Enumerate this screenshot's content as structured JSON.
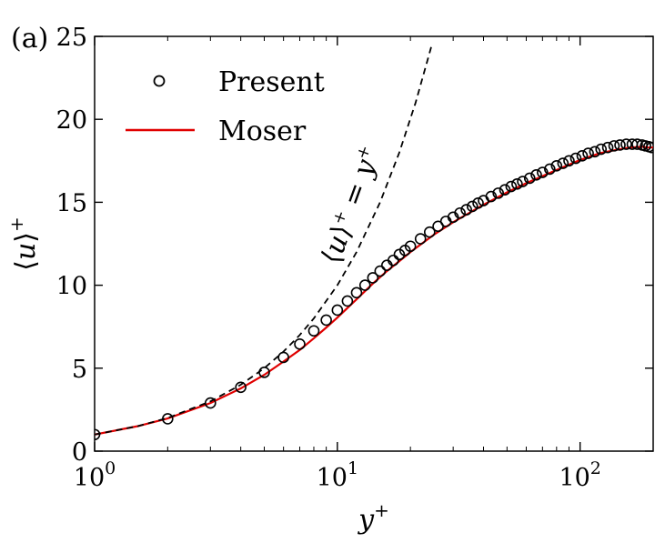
{
  "panel_label": "(a)",
  "chart_data": {
    "type": "line",
    "title": "",
    "xlabel": "y+",
    "ylabel": "⟨u⟩+",
    "xscale": "log",
    "xlim": [
      1,
      200
    ],
    "ylim": [
      0,
      25
    ],
    "ytick_labels": [
      "0",
      "5",
      "10",
      "15",
      "20",
      "25"
    ],
    "ytick_values": [
      0,
      5,
      10,
      15,
      20,
      25
    ],
    "xtick_labels": [
      {
        "base": "10",
        "exp": "0"
      },
      {
        "base": "10",
        "exp": "1"
      },
      {
        "base": "10",
        "exp": "2"
      }
    ],
    "xtick_values": [
      1,
      10,
      100
    ],
    "legend": {
      "placement": "top-left",
      "entries": [
        {
          "label": "Present",
          "marker": "circle-open",
          "color": "#000000"
        },
        {
          "label": "Moser",
          "marker": "line",
          "color": "#e00000"
        }
      ]
    },
    "annotation": {
      "text": "⟨u⟩+ = y+",
      "rotation_deg": -70
    },
    "series": [
      {
        "name": "Present",
        "style": "open-circles",
        "color": "#000000",
        "x": [
          1,
          2,
          3,
          4,
          5,
          6,
          7,
          8,
          9,
          10,
          11,
          12,
          13,
          14,
          15,
          16,
          17,
          18,
          19,
          20,
          22,
          24,
          26,
          28,
          30,
          32,
          34,
          36,
          38,
          40,
          43,
          46,
          49,
          52,
          55,
          58,
          62,
          66,
          70,
          75,
          80,
          85,
          90,
          96,
          102,
          108,
          115,
          122,
          130,
          138,
          146,
          155,
          164,
          172,
          180,
          186,
          192,
          197
        ],
        "y": [
          1.0,
          1.95,
          2.9,
          3.85,
          4.75,
          5.65,
          6.45,
          7.25,
          7.9,
          8.5,
          9.05,
          9.55,
          10.0,
          10.45,
          10.85,
          11.2,
          11.5,
          11.85,
          12.1,
          12.35,
          12.8,
          13.2,
          13.55,
          13.85,
          14.1,
          14.35,
          14.55,
          14.75,
          14.95,
          15.1,
          15.35,
          15.55,
          15.75,
          15.95,
          16.1,
          16.25,
          16.45,
          16.65,
          16.8,
          17.0,
          17.2,
          17.35,
          17.5,
          17.65,
          17.8,
          17.95,
          18.05,
          18.2,
          18.3,
          18.4,
          18.45,
          18.5,
          18.5,
          18.5,
          18.45,
          18.4,
          18.35,
          18.3
        ]
      },
      {
        "name": "Moser",
        "style": "solid-line",
        "color": "#e00000",
        "x": [
          1,
          1.5,
          2,
          3,
          4,
          5,
          6,
          7,
          8,
          9,
          10,
          12,
          14,
          16,
          18,
          20,
          25,
          30,
          40,
          50,
          60,
          80,
          100,
          120,
          140,
          160,
          180,
          190,
          200
        ],
        "y": [
          1.0,
          1.5,
          1.97,
          2.9,
          3.78,
          4.6,
          5.4,
          6.1,
          6.8,
          7.45,
          8.05,
          9.15,
          10.1,
          10.85,
          11.45,
          12.0,
          13.05,
          13.8,
          14.85,
          15.6,
          16.15,
          16.95,
          17.55,
          17.95,
          18.15,
          18.3,
          18.35,
          18.3,
          18.3
        ]
      },
      {
        "name": "⟨u⟩+ = y+",
        "style": "dashed-line",
        "color": "#000000",
        "function": "y = x",
        "x": [
          1,
          1.5,
          2,
          3,
          4,
          5,
          6,
          7,
          8,
          10,
          12,
          15,
          18,
          21,
          24.4
        ],
        "y": [
          1,
          1.5,
          2,
          3,
          4,
          5,
          6,
          7,
          8,
          10,
          12,
          15,
          18,
          21,
          24.4
        ]
      }
    ]
  }
}
